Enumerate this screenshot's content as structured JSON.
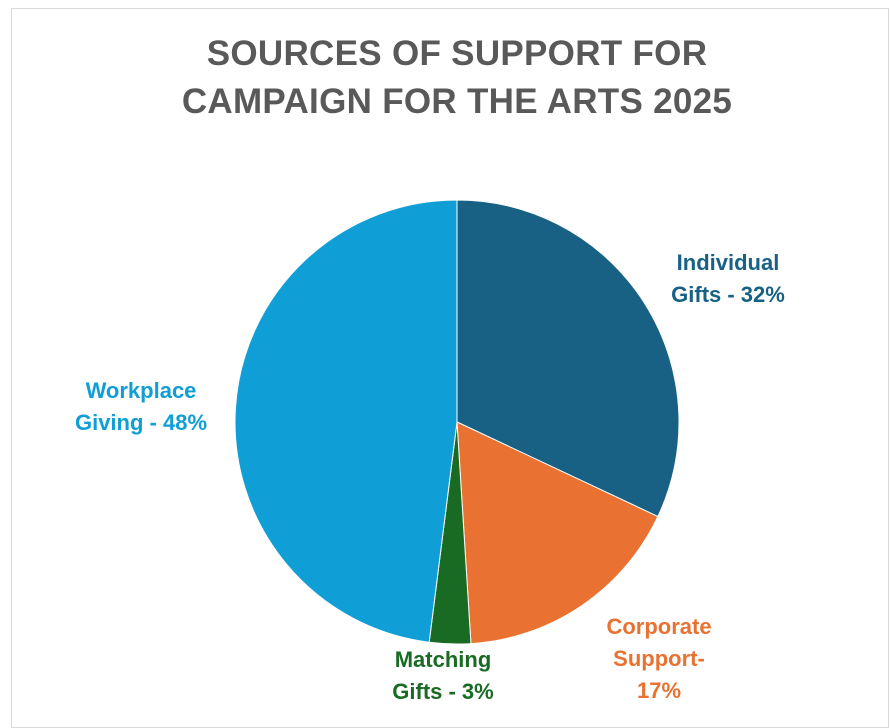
{
  "chart_data": {
    "type": "pie",
    "title_lines": [
      "SOURCES OF SUPPORT FOR",
      "CAMPAIGN FOR THE ARTS 2025"
    ],
    "slices": [
      {
        "id": "individual",
        "label": "Individual Gifts - 32%",
        "label_lines": [
          "Individual",
          "Gifts - 32%"
        ],
        "value": 32,
        "color": "#186184"
      },
      {
        "id": "corporate",
        "label": "Corporate Support- 17%",
        "label_lines": [
          "Corporate",
          "Support-",
          "17%"
        ],
        "value": 17,
        "color": "#E97132"
      },
      {
        "id": "matching",
        "label": "Matching Gifts - 3%",
        "label_lines": [
          "Matching",
          "Gifts - 3%"
        ],
        "value": 3,
        "color": "#196B24"
      },
      {
        "id": "workplace",
        "label": "Workplace Giving - 48%",
        "label_lines": [
          "Workplace",
          "Giving - 48%"
        ],
        "value": 48,
        "color": "#0F9ED5"
      }
    ],
    "start_angle": "12 o'clock",
    "direction": "clockwise",
    "legend": "none"
  }
}
